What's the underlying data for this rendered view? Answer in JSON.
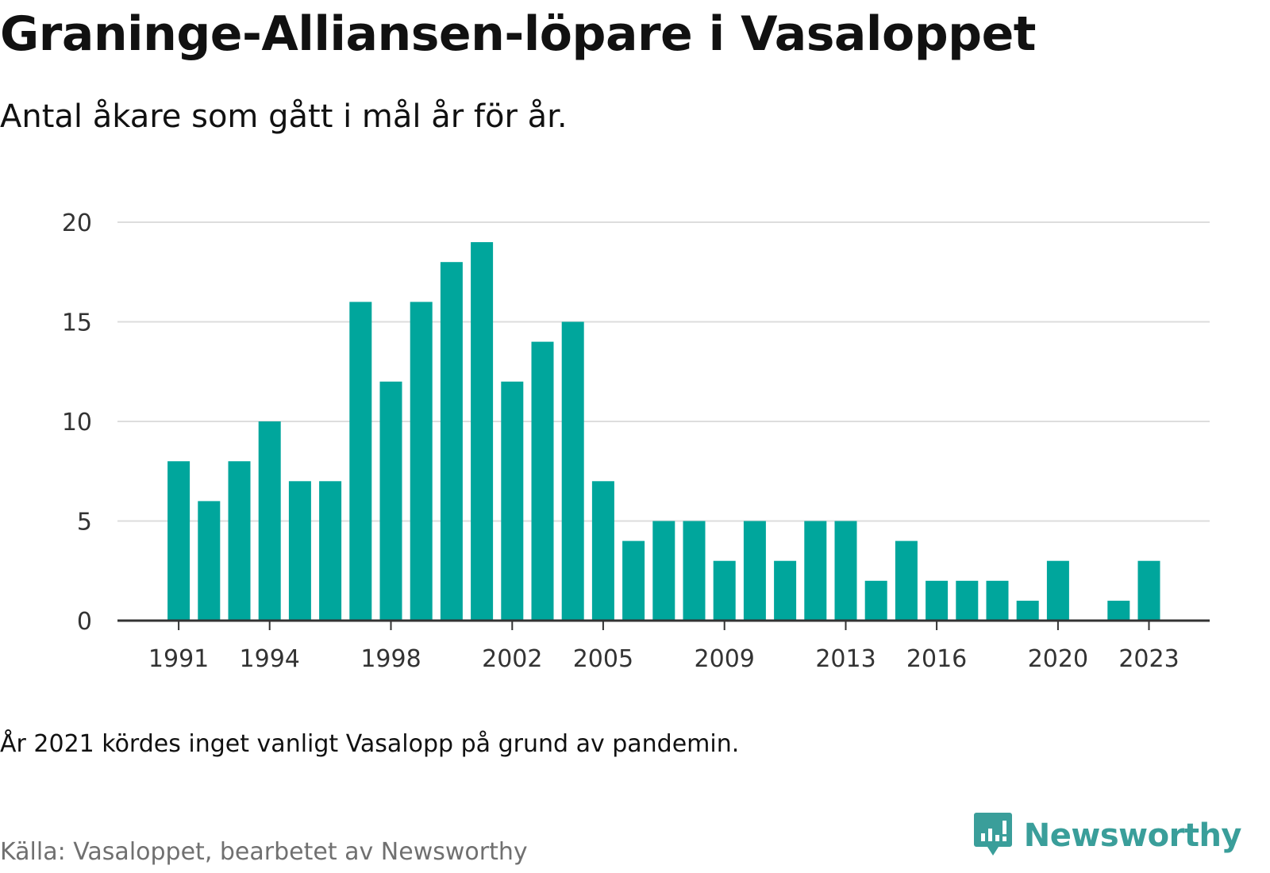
{
  "header": {
    "title": "Graninge-Alliansen-löpare i Vasaloppet",
    "subtitle": "Antal åkare som gått i mål år för år."
  },
  "footer": {
    "note": "År 2021 kördes inget vanligt Vasalopp på grund av pandemin.",
    "source": "Källa: Vasaloppet, bearbetet av Newsworthy",
    "brand": "Newsworthy",
    "brand_icon": "newsworthy-logo-icon"
  },
  "colors": {
    "bar": "#00a69c",
    "grid": "#dddddd",
    "axis": "#333333",
    "brand": "#3a9e9a"
  },
  "chart_data": {
    "type": "bar",
    "title": "Graninge-Alliansen-löpare i Vasaloppet",
    "subtitle": "Antal åkare som gått i mål år för år.",
    "xlabel": "",
    "ylabel": "",
    "ylim": [
      0,
      20
    ],
    "yticks": [
      0,
      5,
      10,
      15,
      20
    ],
    "xticks": [
      1991,
      1994,
      1998,
      2002,
      2005,
      2009,
      2013,
      2016,
      2020,
      2023
    ],
    "grid": true,
    "categories": [
      1991,
      1992,
      1993,
      1994,
      1995,
      1996,
      1997,
      1998,
      1999,
      2000,
      2001,
      2002,
      2003,
      2004,
      2005,
      2006,
      2007,
      2008,
      2009,
      2010,
      2011,
      2012,
      2013,
      2014,
      2015,
      2016,
      2017,
      2018,
      2019,
      2020,
      2021,
      2022,
      2023
    ],
    "values": [
      8,
      6,
      8,
      10,
      7,
      7,
      16,
      12,
      16,
      18,
      19,
      12,
      14,
      15,
      7,
      4,
      5,
      5,
      3,
      5,
      3,
      5,
      5,
      2,
      4,
      2,
      2,
      2,
      1,
      3,
      0,
      1,
      3
    ]
  }
}
